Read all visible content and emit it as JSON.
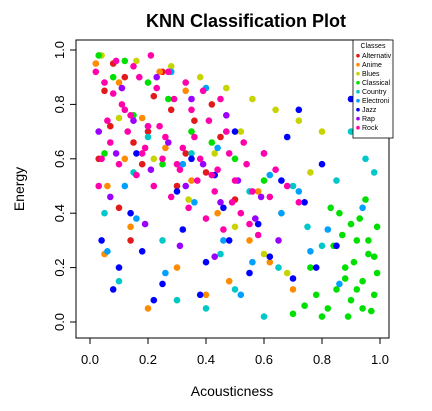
{
  "chart_data": {
    "type": "scatter",
    "title": "KNN Classification Plot",
    "xlabel": "Acousticness",
    "ylabel": "Energy",
    "xlim": [
      0,
      1
    ],
    "ylim": [
      0,
      1
    ],
    "xticks": [
      "0.0",
      "0.2",
      "0.4",
      "0.6",
      "0.8",
      "1.0"
    ],
    "yticks": [
      "0.0",
      "0.2",
      "0.4",
      "0.6",
      "0.8",
      "1.0"
    ],
    "grid": false,
    "legend": {
      "title": "Classes",
      "position": "top-right",
      "entries": [
        {
          "name": "Alternativ",
          "color": "#e31a1c"
        },
        {
          "name": "Anime",
          "color": "#ff8c00"
        },
        {
          "name": "Blues",
          "color": "#c8d400"
        },
        {
          "name": "Classical",
          "color": "#00e000"
        },
        {
          "name": "Country",
          "color": "#00c8c8"
        },
        {
          "name": "Electroni",
          "color": "#00a0ff"
        },
        {
          "name": "Jazz",
          "color": "#0000ff"
        },
        {
          "name": "Rap",
          "color": "#9900ff"
        },
        {
          "name": "Rock",
          "color": "#ff00aa"
        }
      ]
    },
    "series": [
      {
        "color": "#e31a1c",
        "x": [
          0.05,
          0.12,
          0.2,
          0.28,
          0.33,
          0.4,
          0.08,
          0.15,
          0.22,
          0.3,
          0.45,
          0.1,
          0.18,
          0.36,
          0.5,
          0.03,
          0.25,
          0.42,
          0.14,
          0.07
        ],
        "y": [
          0.85,
          0.9,
          0.7,
          0.78,
          0.62,
          0.55,
          0.95,
          0.66,
          0.83,
          0.5,
          0.68,
          0.42,
          0.58,
          0.74,
          0.45,
          0.6,
          0.92,
          0.8,
          0.3,
          0.72
        ]
      },
      {
        "color": "#ff8c00",
        "x": [
          0.02,
          0.1,
          0.18,
          0.26,
          0.35,
          0.44,
          0.55,
          0.06,
          0.14,
          0.3,
          0.48,
          0.62,
          0.2,
          0.4,
          0.12,
          0.05,
          0.33,
          0.58,
          0.24,
          0.7
        ],
        "y": [
          0.95,
          0.88,
          0.75,
          0.64,
          0.52,
          0.4,
          0.3,
          0.5,
          0.35,
          0.2,
          0.15,
          0.22,
          0.05,
          0.1,
          0.6,
          0.25,
          0.85,
          0.48,
          0.92,
          0.12
        ]
      },
      {
        "color": "#c8d400",
        "x": [
          0.04,
          0.16,
          0.28,
          0.38,
          0.47,
          0.56,
          0.64,
          0.72,
          0.8,
          0.22,
          0.34,
          0.5,
          0.6,
          0.68,
          0.1,
          0.43,
          0.76,
          0.3,
          0.52,
          0.66
        ],
        "y": [
          0.98,
          0.96,
          0.94,
          0.9,
          0.86,
          0.82,
          0.78,
          0.74,
          0.7,
          0.6,
          0.45,
          0.35,
          0.25,
          0.18,
          0.75,
          0.62,
          0.55,
          0.08,
          0.7,
          0.4
        ]
      },
      {
        "color": "#00e000",
        "x": [
          0.82,
          0.85,
          0.88,
          0.9,
          0.92,
          0.94,
          0.96,
          0.98,
          0.99,
          0.86,
          0.89,
          0.93,
          0.97,
          0.84,
          0.91,
          0.95,
          0.99,
          0.87,
          0.78,
          0.8,
          0.74,
          0.7,
          0.83,
          0.96,
          0.92,
          0.98,
          0.88,
          0.94,
          0.9,
          0.76,
          0.03,
          0.08,
          0.12,
          0.2,
          0.27,
          0.35,
          0.15,
          0.42,
          0.05,
          0.25,
          0.5,
          0.6
        ],
        "y": [
          0.05,
          0.12,
          0.2,
          0.08,
          0.3,
          0.15,
          0.25,
          0.1,
          0.35,
          0.4,
          0.02,
          0.38,
          0.04,
          0.28,
          0.22,
          0.45,
          0.18,
          0.32,
          0.1,
          0.02,
          0.06,
          0.03,
          0.42,
          0.3,
          0.12,
          0.24,
          0.16,
          0.05,
          0.36,
          0.2,
          0.98,
          0.9,
          0.96,
          0.88,
          0.82,
          0.7,
          0.76,
          0.66,
          0.62,
          0.58,
          0.6,
          0.52
        ]
      },
      {
        "color": "#00c8c8",
        "x": [
          0.05,
          0.15,
          0.25,
          0.35,
          0.45,
          0.55,
          0.65,
          0.75,
          0.85,
          0.95,
          0.1,
          0.3,
          0.5,
          0.7,
          0.9,
          0.2,
          0.4,
          0.6,
          0.8,
          0.98
        ],
        "y": [
          0.4,
          0.55,
          0.3,
          0.62,
          0.25,
          0.48,
          0.2,
          0.35,
          0.52,
          0.6,
          0.15,
          0.08,
          0.12,
          0.5,
          0.7,
          0.68,
          0.05,
          0.02,
          0.28,
          0.55
        ]
      },
      {
        "color": "#00a0ff",
        "x": [
          0.06,
          0.16,
          0.26,
          0.36,
          0.46,
          0.56,
          0.66,
          0.76,
          0.86,
          0.2,
          0.32,
          0.44,
          0.62,
          0.72,
          0.82,
          0.12,
          0.52,
          0.94,
          0.4,
          0.28
        ],
        "y": [
          0.26,
          0.38,
          0.18,
          0.44,
          0.3,
          0.22,
          0.4,
          0.26,
          0.14,
          0.72,
          0.58,
          0.64,
          0.54,
          0.48,
          0.34,
          0.5,
          0.1,
          0.42,
          0.86,
          0.92
        ]
      },
      {
        "color": "#0000ff",
        "x": [
          0.04,
          0.1,
          0.18,
          0.25,
          0.32,
          0.4,
          0.48,
          0.55,
          0.62,
          0.7,
          0.78,
          0.85,
          0.14,
          0.22,
          0.3,
          0.38,
          0.46,
          0.58,
          0.66,
          0.74,
          0.08,
          0.5,
          0.6,
          0.68,
          0.72,
          0.8,
          0.35,
          0.43,
          0.16,
          0.9
        ],
        "y": [
          0.3,
          0.2,
          0.26,
          0.14,
          0.34,
          0.22,
          0.3,
          0.18,
          0.24,
          0.16,
          0.2,
          0.28,
          0.4,
          0.08,
          0.48,
          0.1,
          0.42,
          0.36,
          0.52,
          0.44,
          0.12,
          0.7,
          0.62,
          0.68,
          0.78,
          0.58,
          0.6,
          0.54,
          0.62,
          0.82
        ]
      },
      {
        "color": "#9900ff",
        "x": [
          0.03,
          0.09,
          0.15,
          0.21,
          0.27,
          0.33,
          0.39,
          0.45,
          0.51,
          0.57,
          0.11,
          0.23,
          0.35,
          0.47,
          0.59,
          0.07,
          0.19,
          0.31,
          0.43,
          0.65
        ],
        "y": [
          0.7,
          0.62,
          0.74,
          0.56,
          0.66,
          0.5,
          0.58,
          0.44,
          0.52,
          0.38,
          0.86,
          0.9,
          0.82,
          0.76,
          0.46,
          0.46,
          0.36,
          0.28,
          0.24,
          0.3
        ]
      },
      {
        "color": "#ff00aa",
        "x": [
          0.02,
          0.05,
          0.08,
          0.11,
          0.14,
          0.17,
          0.2,
          0.23,
          0.26,
          0.29,
          0.32,
          0.35,
          0.38,
          0.41,
          0.44,
          0.47,
          0.5,
          0.53,
          0.56,
          0.6,
          0.04,
          0.07,
          0.1,
          0.13,
          0.16,
          0.19,
          0.22,
          0.25,
          0.28,
          0.31,
          0.34,
          0.37,
          0.4,
          0.43,
          0.46,
          0.49,
          0.52,
          0.55,
          0.58,
          0.62,
          0.06,
          0.12,
          0.18,
          0.24,
          0.3,
          0.36,
          0.42,
          0.48,
          0.54,
          0.64,
          0.09,
          0.15,
          0.21,
          0.27,
          0.33,
          0.39,
          0.45,
          0.03,
          0.68,
          0.72
        ],
        "y": [
          0.92,
          0.88,
          0.84,
          0.8,
          0.76,
          0.9,
          0.72,
          0.86,
          0.68,
          0.82,
          0.64,
          0.78,
          0.6,
          0.74,
          0.56,
          0.7,
          0.52,
          0.66,
          0.48,
          0.62,
          0.6,
          0.66,
          0.58,
          0.7,
          0.54,
          0.64,
          0.5,
          0.6,
          0.46,
          0.56,
          0.42,
          0.52,
          0.38,
          0.48,
          0.34,
          0.44,
          0.4,
          0.36,
          0.32,
          0.46,
          0.74,
          0.78,
          0.62,
          0.72,
          0.58,
          0.68,
          0.54,
          0.62,
          0.58,
          0.56,
          0.96,
          0.94,
          0.98,
          0.92,
          0.88,
          0.85,
          0.82,
          0.5,
          0.5,
          0.44
        ]
      }
    ]
  }
}
